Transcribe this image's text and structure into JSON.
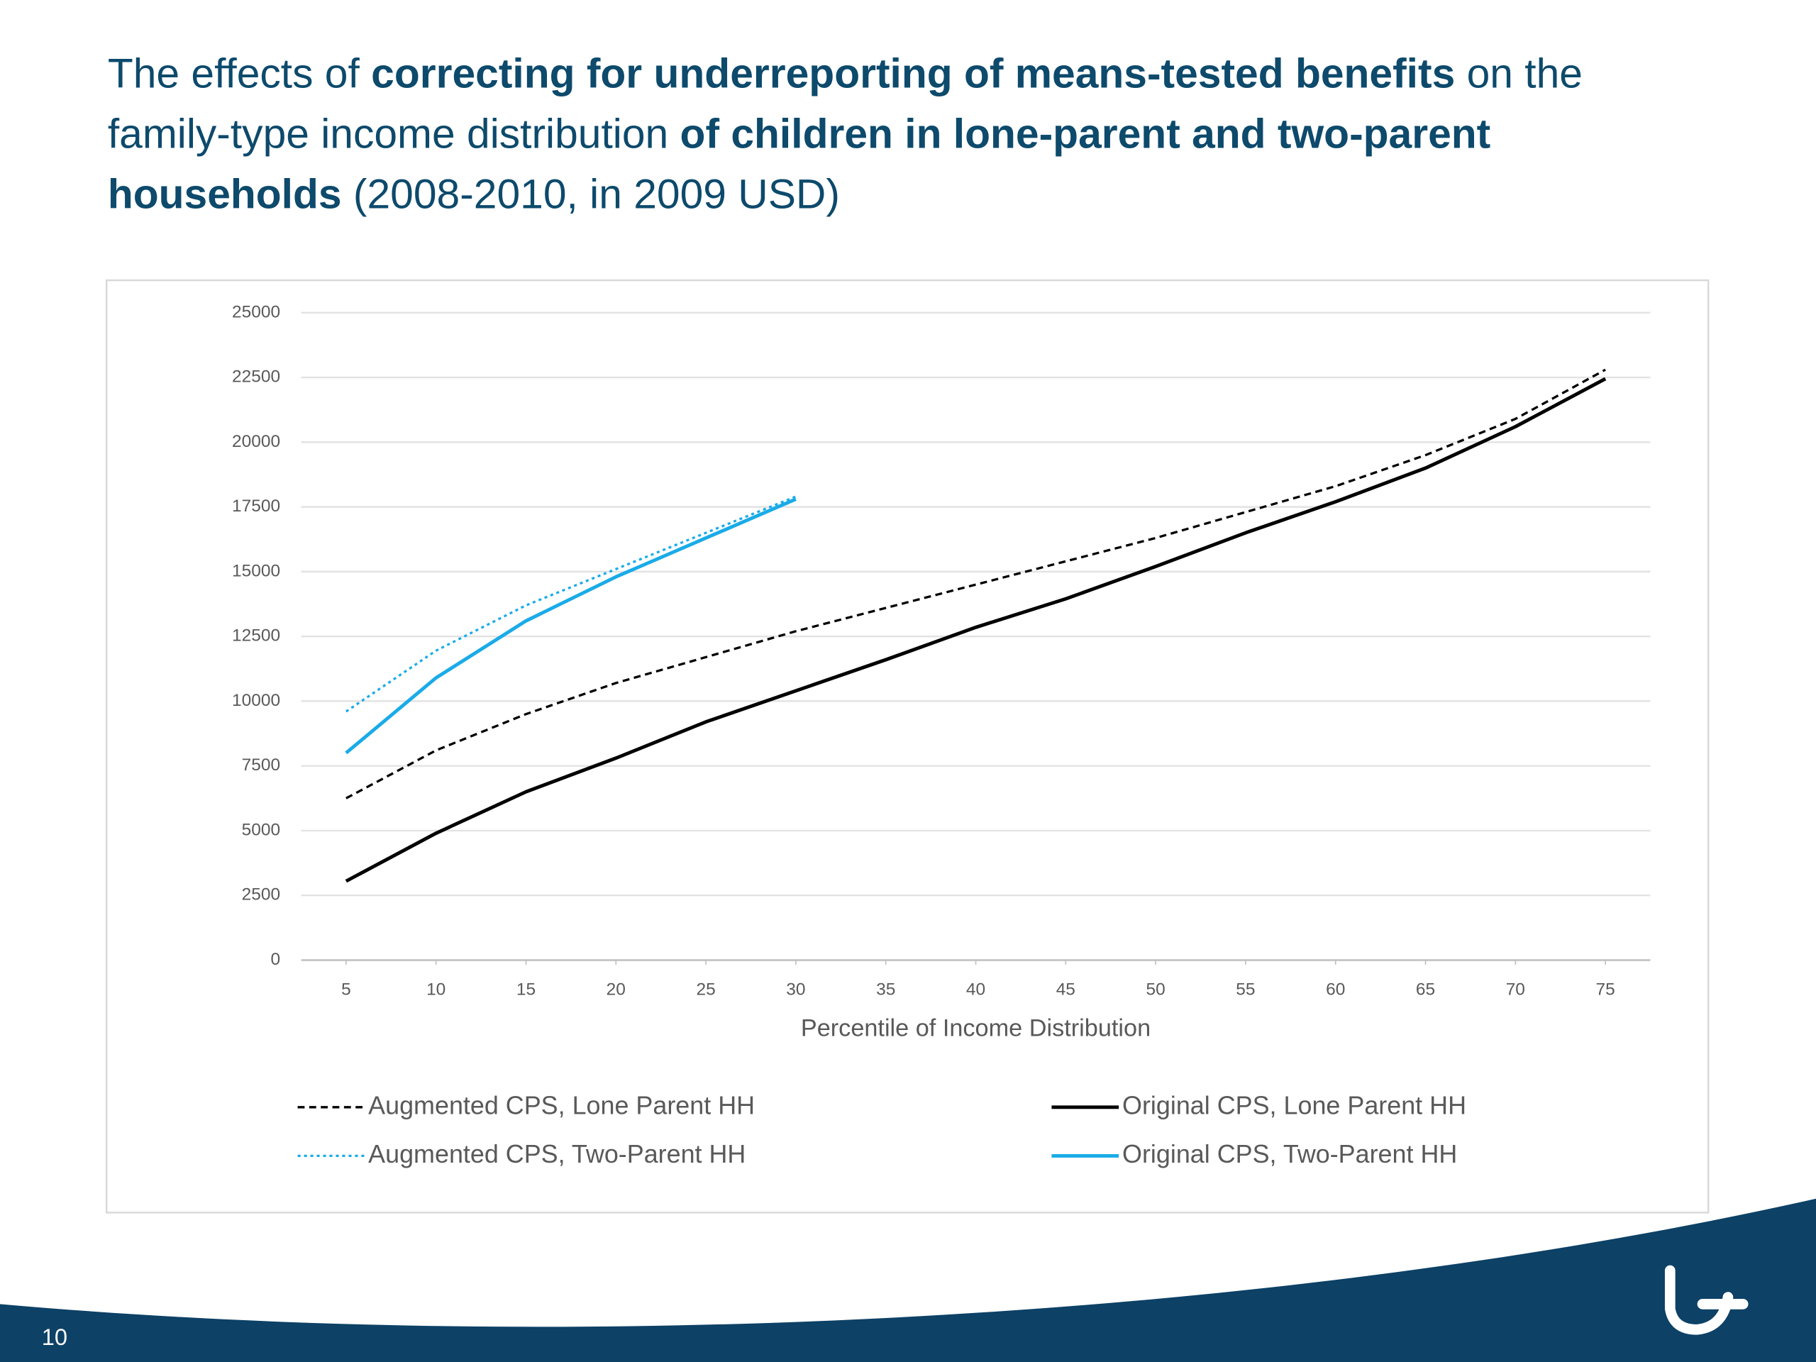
{
  "chart_data": {
    "type": "line",
    "title_lines": [
      [
        {
          "text": "The effects of ",
          "bold": false
        },
        {
          "text": "correcting for underreporting of means-tested benefits",
          "bold": true
        },
        {
          "text": " on the",
          "bold": false
        }
      ],
      [
        {
          "text": "family-type income distribution ",
          "bold": false
        },
        {
          "text": "of children in lone-parent and two-parent",
          "bold": true
        }
      ],
      [
        {
          "text": "households",
          "bold": true
        },
        {
          "text": " (2008-2010, in 2009 USD)",
          "bold": false
        }
      ]
    ],
    "x_label": "Percentile of Income Distribution",
    "x": [
      5,
      10,
      15,
      20,
      25,
      30,
      35,
      40,
      45,
      50,
      55,
      60,
      65,
      70,
      75
    ],
    "series": [
      {
        "name": "Augmented CPS, Lone Parent HH",
        "color": "#000000",
        "dash": "dashed",
        "values": [
          6250,
          8100,
          9500,
          10700,
          11700,
          12700,
          13600,
          14500,
          15400,
          16300,
          17300,
          18300,
          19500,
          20900,
          22800
        ]
      },
      {
        "name": "Original CPS, Lone Parent HH",
        "color": "#000000",
        "dash": "solid",
        "values": [
          3050,
          4900,
          6500,
          7800,
          9200,
          10400,
          11600,
          12850,
          13950,
          15200,
          16500,
          17700,
          19000,
          20600,
          22450
        ]
      },
      {
        "name": "Augmented CPS, Two-Parent HH",
        "color": "#1aabe8",
        "dash": "dotted",
        "values": [
          9600,
          11950,
          13700,
          15100,
          16500,
          17900,
          null,
          null,
          null,
          null,
          null,
          null,
          null,
          null,
          null
        ]
      },
      {
        "name": "Original CPS, Two-Parent HH",
        "color": "#1aabe8",
        "dash": "solid",
        "values": [
          8000,
          10900,
          13100,
          14800,
          16300,
          17800,
          null,
          null,
          null,
          null,
          null,
          null,
          null,
          null,
          null
        ]
      }
    ],
    "xlim": [
      2.5,
      77.5
    ],
    "xticks": [
      5,
      10,
      15,
      20,
      25,
      30,
      35,
      40,
      45,
      50,
      55,
      60,
      65,
      70,
      75
    ],
    "ylim": [
      0,
      25000
    ],
    "yticks": [
      0,
      2500,
      5000,
      7500,
      10000,
      12500,
      15000,
      17500,
      20000,
      22500,
      25000
    ],
    "grid": true
  },
  "footer": {
    "page_number": "10"
  }
}
